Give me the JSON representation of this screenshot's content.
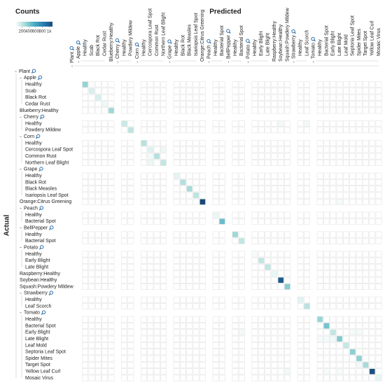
{
  "chart_data": {
    "type": "hierarchical-confusion-matrix",
    "legend_title": "Counts",
    "xlabel": "Predicted",
    "ylabel": "Actual",
    "clim": [
      0,
      1100
    ],
    "cticks": [
      200,
      400,
      600,
      800,
      {
        "value": 1000,
        "label": "1k"
      }
    ],
    "colormap": [
      "#ffffff",
      "#a8dcd8",
      "#4aaec4",
      "#2a7fb0",
      "#1a4a7a"
    ],
    "root": {
      "label": "Plant",
      "children": [
        {
          "label": "Apple",
          "children": [
            "Healthy",
            "Scab",
            "Black Rot",
            "Cedar Rust"
          ]
        },
        "Blueberry:Healthy",
        {
          "label": "Cherry",
          "children": [
            "Healthy",
            "Powdery Mildew"
          ]
        },
        {
          "label": "Corn",
          "children": [
            "Healthy",
            "Cercospora Leaf Spot",
            "Common Rust",
            "Northern Leaf Blight"
          ]
        },
        {
          "label": "Grape",
          "children": [
            "Healthy",
            "Black Rot",
            "Black Measles",
            "Isariopsis Leaf Spot"
          ]
        },
        "Orange:Citrus Greening",
        {
          "label": "Peach",
          "children": [
            "Healthy",
            "Bacterial Spot"
          ]
        },
        {
          "label": "BellPepper",
          "children": [
            "Healthy",
            "Bacterial Spot"
          ]
        },
        {
          "label": "Potato",
          "children": [
            "Healthy",
            "Early Blight",
            "Late Blight"
          ]
        },
        "Raspberry:Healthy",
        "Soybean:Healthy",
        "Squash:Powdery Mildew",
        {
          "label": "Strawberry",
          "children": [
            "Healthy",
            "Leaf Scorch"
          ]
        },
        {
          "label": "Tomato",
          "children": [
            "Healthy",
            "Bacterial Spot",
            "Early Blight",
            "Late Blight",
            "Leaf Mold",
            "Septoria Leaf Spot",
            "Spider Mites",
            "Target Spot",
            "Yellow Leaf Curl",
            "Mosaic Virus"
          ]
        }
      ]
    },
    "values": [
      [
        329,
        0,
        0,
        0,
        0,
        0,
        0,
        0,
        0,
        0,
        0,
        0,
        0,
        0,
        0,
        0,
        0,
        0,
        0,
        0,
        0,
        0,
        0,
        0,
        0,
        0,
        0,
        0,
        0,
        0,
        0,
        0,
        0,
        0,
        0,
        0,
        0,
        0
      ],
      [
        0,
        126,
        0,
        0,
        0,
        0,
        0,
        0,
        0,
        0,
        0,
        0,
        0,
        0,
        0,
        0,
        0,
        0,
        0,
        0,
        0,
        0,
        0,
        0,
        0,
        0,
        0,
        0,
        0,
        0,
        0,
        0,
        0,
        0,
        0,
        0,
        0,
        0
      ],
      [
        0,
        0,
        124,
        0,
        0,
        0,
        0,
        0,
        0,
        0,
        0,
        0,
        0,
        0,
        0,
        0,
        0,
        0,
        0,
        0,
        0,
        0,
        0,
        0,
        0,
        0,
        0,
        0,
        0,
        0,
        0,
        0,
        0,
        0,
        0,
        0,
        0,
        0
      ],
      [
        0,
        0,
        0,
        55,
        0,
        0,
        0,
        0,
        0,
        0,
        0,
        0,
        0,
        0,
        0,
        0,
        0,
        0,
        0,
        0,
        0,
        0,
        0,
        0,
        0,
        0,
        0,
        0,
        0,
        0,
        0,
        0,
        0,
        0,
        0,
        0,
        0,
        0
      ],
      [
        0,
        0,
        0,
        0,
        300,
        0,
        0,
        0,
        0,
        0,
        0,
        0,
        0,
        0,
        0,
        0,
        0,
        0,
        0,
        0,
        0,
        0,
        0,
        0,
        0,
        0,
        0,
        0,
        0,
        0,
        0,
        0,
        0,
        0,
        0,
        0,
        0,
        0
      ],
      [
        0,
        0,
        0,
        0,
        0,
        171,
        0,
        0,
        0,
        0,
        0,
        0,
        0,
        0,
        0,
        0,
        0,
        0,
        0,
        0,
        0,
        0,
        0,
        0,
        40,
        0,
        0,
        40,
        0,
        0,
        0,
        0,
        0,
        0,
        0,
        0,
        0,
        0
      ],
      [
        0,
        0,
        0,
        0,
        0,
        0,
        210,
        0,
        0,
        0,
        0,
        0,
        0,
        0,
        0,
        0,
        0,
        0,
        0,
        0,
        0,
        0,
        0,
        0,
        0,
        0,
        0,
        0,
        0,
        0,
        0,
        0,
        0,
        0,
        0,
        0,
        0,
        0
      ],
      [
        0,
        0,
        0,
        0,
        0,
        0,
        0,
        232,
        0,
        0,
        0,
        0,
        0,
        0,
        0,
        0,
        0,
        0,
        0,
        0,
        0,
        0,
        0,
        0,
        0,
        0,
        0,
        0,
        0,
        0,
        0,
        0,
        0,
        0,
        0,
        0,
        0,
        0
      ],
      [
        0,
        0,
        0,
        0,
        0,
        0,
        0,
        0,
        103,
        0,
        55,
        0,
        0,
        0,
        0,
        0,
        0,
        0,
        0,
        0,
        0,
        0,
        0,
        0,
        0,
        0,
        0,
        0,
        0,
        0,
        0,
        0,
        0,
        0,
        0,
        0,
        0,
        0
      ],
      [
        0,
        0,
        0,
        0,
        0,
        0,
        0,
        0,
        45,
        238,
        0,
        0,
        0,
        0,
        0,
        0,
        0,
        0,
        0,
        0,
        0,
        0,
        0,
        0,
        0,
        0,
        0,
        0,
        0,
        0,
        0,
        0,
        0,
        0,
        0,
        0,
        0,
        0
      ],
      [
        0,
        0,
        0,
        0,
        0,
        0,
        0,
        0,
        60,
        0,
        197,
        0,
        0,
        0,
        0,
        0,
        0,
        0,
        0,
        0,
        0,
        0,
        0,
        0,
        0,
        0,
        0,
        0,
        0,
        0,
        0,
        0,
        0,
        0,
        0,
        0,
        0,
        0
      ],
      [
        0,
        0,
        0,
        0,
        0,
        0,
        0,
        0,
        0,
        0,
        0,
        85,
        0,
        0,
        0,
        0,
        0,
        0,
        0,
        0,
        0,
        0,
        0,
        0,
        0,
        0,
        0,
        0,
        0,
        0,
        0,
        0,
        0,
        0,
        0,
        0,
        0,
        0
      ],
      [
        0,
        0,
        0,
        0,
        0,
        0,
        0,
        0,
        0,
        0,
        0,
        0,
        236,
        0,
        0,
        0,
        0,
        0,
        0,
        0,
        0,
        0,
        0,
        0,
        0,
        0,
        0,
        0,
        0,
        0,
        0,
        0,
        0,
        0,
        0,
        0,
        0,
        0
      ],
      [
        0,
        0,
        0,
        0,
        0,
        0,
        0,
        0,
        0,
        0,
        0,
        0,
        0,
        277,
        0,
        0,
        0,
        0,
        0,
        0,
        0,
        0,
        0,
        0,
        0,
        0,
        0,
        0,
        0,
        0,
        0,
        0,
        0,
        0,
        0,
        0,
        0,
        0
      ],
      [
        0,
        0,
        0,
        0,
        0,
        0,
        0,
        0,
        0,
        0,
        0,
        0,
        0,
        0,
        215,
        0,
        0,
        0,
        0,
        0,
        0,
        0,
        0,
        0,
        0,
        0,
        0,
        0,
        0,
        0,
        0,
        0,
        0,
        0,
        0,
        0,
        0,
        0
      ],
      [
        0,
        0,
        0,
        0,
        0,
        0,
        0,
        0,
        0,
        0,
        0,
        0,
        0,
        0,
        0,
        1101,
        0,
        0,
        0,
        0,
        0,
        0,
        0,
        0,
        0,
        0,
        0,
        0,
        0,
        0,
        0,
        35,
        0,
        0,
        0,
        0,
        0,
        0
      ],
      [
        0,
        0,
        0,
        0,
        0,
        0,
        0,
        0,
        0,
        0,
        0,
        0,
        0,
        0,
        0,
        0,
        72,
        0,
        0,
        0,
        0,
        0,
        0,
        0,
        0,
        0,
        0,
        0,
        0,
        0,
        0,
        0,
        0,
        0,
        0,
        0,
        0,
        0
      ],
      [
        0,
        0,
        0,
        0,
        0,
        0,
        0,
        0,
        0,
        0,
        0,
        0,
        0,
        0,
        0,
        0,
        0,
        459,
        0,
        0,
        0,
        0,
        0,
        0,
        0,
        0,
        0,
        0,
        0,
        0,
        0,
        0,
        0,
        0,
        0,
        0,
        0,
        0
      ],
      [
        0,
        0,
        0,
        0,
        0,
        0,
        0,
        0,
        0,
        0,
        0,
        0,
        0,
        0,
        0,
        0,
        0,
        0,
        296,
        0,
        0,
        0,
        0,
        0,
        0,
        0,
        0,
        0,
        0,
        0,
        0,
        0,
        0,
        0,
        0,
        0,
        0,
        0
      ],
      [
        0,
        0,
        0,
        0,
        0,
        0,
        0,
        0,
        0,
        0,
        0,
        0,
        0,
        0,
        0,
        0,
        0,
        0,
        0,
        199,
        0,
        0,
        0,
        0,
        0,
        0,
        0,
        0,
        0,
        0,
        0,
        0,
        0,
        0,
        0,
        0,
        0,
        0
      ],
      [
        0,
        0,
        0,
        0,
        0,
        0,
        0,
        0,
        0,
        0,
        0,
        0,
        0,
        0,
        0,
        0,
        0,
        0,
        0,
        0,
        30,
        0,
        0,
        0,
        0,
        0,
        0,
        0,
        0,
        0,
        0,
        0,
        0,
        0,
        0,
        0,
        0,
        0
      ],
      [
        0,
        0,
        0,
        0,
        0,
        0,
        0,
        0,
        0,
        0,
        0,
        0,
        0,
        0,
        0,
        0,
        0,
        0,
        0,
        0,
        0,
        200,
        0,
        0,
        0,
        0,
        0,
        0,
        0,
        0,
        0,
        0,
        0,
        0,
        0,
        0,
        0,
        0
      ],
      [
        0,
        0,
        0,
        0,
        0,
        0,
        0,
        0,
        0,
        0,
        0,
        0,
        0,
        0,
        0,
        0,
        0,
        0,
        0,
        0,
        0,
        0,
        200,
        0,
        0,
        0,
        0,
        0,
        0,
        0,
        0,
        0,
        0,
        0,
        0,
        0,
        0,
        0
      ],
      [
        0,
        0,
        0,
        0,
        0,
        0,
        0,
        0,
        0,
        0,
        0,
        0,
        0,
        0,
        0,
        0,
        0,
        0,
        0,
        0,
        0,
        0,
        0,
        74,
        0,
        0,
        0,
        0,
        0,
        0,
        0,
        0,
        0,
        0,
        0,
        0,
        0,
        0
      ],
      [
        0,
        0,
        0,
        0,
        0,
        0,
        0,
        0,
        0,
        0,
        0,
        0,
        0,
        0,
        0,
        0,
        0,
        0,
        0,
        0,
        0,
        0,
        0,
        0,
        1018,
        0,
        0,
        0,
        0,
        0,
        0,
        0,
        0,
        0,
        0,
        0,
        0,
        0
      ],
      [
        0,
        0,
        0,
        0,
        0,
        0,
        0,
        0,
        0,
        0,
        0,
        0,
        0,
        0,
        0,
        0,
        0,
        0,
        0,
        0,
        0,
        0,
        0,
        0,
        0,
        367,
        0,
        0,
        0,
        0,
        0,
        0,
        0,
        0,
        0,
        0,
        0,
        0
      ],
      [
        0,
        0,
        0,
        0,
        0,
        0,
        0,
        0,
        0,
        0,
        0,
        0,
        0,
        0,
        0,
        0,
        0,
        0,
        0,
        0,
        0,
        0,
        0,
        0,
        0,
        0,
        91,
        0,
        0,
        0,
        0,
        0,
        0,
        0,
        0,
        0,
        0,
        0
      ],
      [
        0,
        0,
        0,
        0,
        0,
        0,
        0,
        0,
        0,
        0,
        0,
        0,
        0,
        0,
        0,
        0,
        0,
        0,
        0,
        0,
        0,
        0,
        0,
        0,
        0,
        0,
        0,
        222,
        0,
        0,
        0,
        0,
        0,
        0,
        0,
        0,
        0,
        0
      ],
      [
        0,
        0,
        0,
        0,
        0,
        0,
        0,
        0,
        0,
        0,
        0,
        0,
        0,
        0,
        0,
        0,
        0,
        0,
        0,
        0,
        0,
        0,
        0,
        0,
        0,
        0,
        0,
        0,
        318,
        0,
        0,
        0,
        0,
        0,
        0,
        0,
        0,
        0
      ],
      [
        0,
        0,
        0,
        0,
        0,
        0,
        0,
        0,
        0,
        0,
        0,
        0,
        0,
        0,
        0,
        0,
        0,
        0,
        0,
        0,
        0,
        0,
        0,
        0,
        0,
        0,
        0,
        0,
        0,
        425,
        0,
        0,
        0,
        0,
        0,
        0,
        0,
        0
      ],
      [
        0,
        0,
        0,
        0,
        0,
        0,
        0,
        0,
        0,
        0,
        0,
        0,
        0,
        0,
        0,
        0,
        0,
        0,
        0,
        40,
        0,
        0,
        0,
        0,
        0,
        0,
        0,
        0,
        0,
        0,
        200,
        0,
        0,
        35,
        35,
        0,
        0,
        0
      ],
      [
        0,
        0,
        0,
        0,
        0,
        0,
        0,
        0,
        0,
        0,
        0,
        0,
        0,
        0,
        0,
        0,
        0,
        0,
        0,
        0,
        0,
        0,
        0,
        0,
        0,
        0,
        0,
        0,
        35,
        35,
        45,
        382,
        0,
        0,
        0,
        0,
        0,
        0
      ],
      [
        0,
        0,
        0,
        0,
        0,
        0,
        0,
        0,
        0,
        0,
        0,
        0,
        0,
        0,
        0,
        0,
        0,
        0,
        0,
        0,
        0,
        0,
        0,
        0,
        0,
        0,
        0,
        0,
        0,
        0,
        0,
        0,
        190,
        0,
        0,
        0,
        0,
        0
      ],
      [
        0,
        0,
        0,
        0,
        0,
        0,
        0,
        0,
        0,
        0,
        0,
        0,
        0,
        0,
        0,
        0,
        0,
        0,
        0,
        0,
        0,
        0,
        0,
        0,
        0,
        0,
        0,
        0,
        0,
        0,
        0,
        0,
        0,
        354,
        0,
        0,
        0,
        0
      ],
      [
        0,
        0,
        0,
        0,
        0,
        0,
        0,
        0,
        0,
        0,
        0,
        0,
        0,
        0,
        0,
        0,
        0,
        0,
        0,
        0,
        0,
        0,
        0,
        0,
        0,
        0,
        0,
        0,
        0,
        0,
        0,
        0,
        0,
        0,
        335,
        0,
        0,
        0
      ],
      [
        0,
        0,
        0,
        0,
        0,
        0,
        0,
        0,
        0,
        0,
        0,
        0,
        0,
        0,
        0,
        0,
        0,
        0,
        0,
        0,
        0,
        0,
        0,
        0,
        0,
        0,
        0,
        0,
        0,
        0,
        0,
        0,
        0,
        0,
        40,
        281,
        0,
        0
      ],
      [
        0,
        0,
        0,
        0,
        0,
        0,
        0,
        0,
        0,
        0,
        0,
        0,
        0,
        0,
        0,
        0,
        0,
        0,
        0,
        0,
        0,
        0,
        0,
        0,
        0,
        40,
        0,
        0,
        0,
        30,
        0,
        30,
        0,
        0,
        0,
        0,
        1071,
        0
      ],
      [
        0,
        0,
        0,
        0,
        0,
        0,
        0,
        0,
        0,
        0,
        0,
        0,
        0,
        0,
        0,
        0,
        0,
        0,
        0,
        0,
        0,
        0,
        0,
        0,
        0,
        0,
        0,
        0,
        0,
        0,
        0,
        0,
        0,
        0,
        0,
        0,
        0,
        75
      ]
    ]
  }
}
